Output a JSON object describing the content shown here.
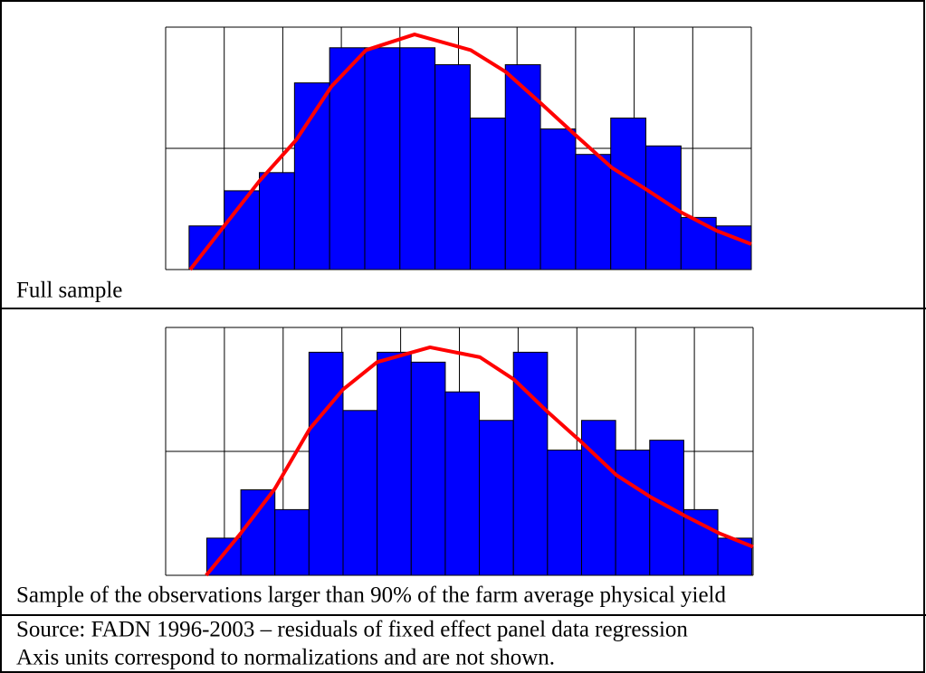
{
  "chart_data": [
    {
      "type": "histogram",
      "bins": [
        0.4,
        1.0,
        1.6,
        2.2,
        2.8,
        3.4,
        4.0,
        4.6,
        5.2,
        5.8,
        6.4,
        7.0,
        7.6,
        8.2,
        8.8,
        9.4,
        10.0
      ],
      "values": [
        0.36,
        0.65,
        0.8,
        1.54,
        1.83,
        1.83,
        1.83,
        1.69,
        1.25,
        1.69,
        1.16,
        0.95,
        1.25,
        1.02,
        0.43,
        0.36
      ],
      "color": "#0000ff",
      "fit": {
        "x": [
          0.42,
          1.0,
          1.6,
          2.23,
          2.83,
          3.42,
          4.25,
          5.21,
          5.81,
          6.41,
          7.02,
          7.62,
          8.21,
          8.81,
          9.41,
          10.0
        ],
        "y": [
          0,
          0.36,
          0.73,
          1.07,
          1.51,
          1.81,
          1.94,
          1.81,
          1.63,
          1.37,
          1.1,
          0.84,
          0.66,
          0.47,
          0.32,
          0.21
        ],
        "color": "#ff0000"
      },
      "xlim": [
        0,
        10
      ],
      "ylim": [
        0,
        2
      ],
      "xticks": [
        0,
        1,
        2,
        3,
        4,
        5,
        6,
        7,
        8,
        9,
        10
      ],
      "yticks": [
        0,
        1,
        2
      ],
      "grid": true
    },
    {
      "type": "histogram",
      "bins": [
        0.7,
        1.28,
        1.86,
        2.44,
        3.02,
        3.6,
        4.18,
        4.76,
        5.34,
        5.92,
        6.5,
        7.08,
        7.66,
        8.24,
        8.82,
        9.4,
        9.98
      ],
      "values": [
        0.3,
        0.69,
        0.53,
        1.8,
        1.33,
        1.8,
        1.72,
        1.48,
        1.25,
        1.8,
        1.01,
        1.25,
        1.01,
        1.09,
        0.53,
        0.3
      ],
      "color": "#0000ff",
      "fit": {
        "x": [
          0.69,
          1.28,
          1.86,
          2.45,
          3.02,
          3.6,
          4.5,
          5.35,
          5.93,
          6.5,
          7.09,
          7.67,
          8.26,
          8.84,
          9.42,
          10.0
        ],
        "y": [
          0,
          0.34,
          0.7,
          1.18,
          1.5,
          1.72,
          1.84,
          1.76,
          1.58,
          1.32,
          1.07,
          0.81,
          0.63,
          0.48,
          0.34,
          0.23
        ],
        "color": "#ff0000"
      },
      "xlim": [
        0,
        10
      ],
      "ylim": [
        0,
        2
      ],
      "xticks": [
        0,
        1,
        2,
        3,
        4,
        5,
        6,
        7,
        8,
        9,
        10
      ],
      "yticks": [
        0,
        1,
        2
      ],
      "grid": true
    }
  ],
  "captions": [
    "Full sample",
    "Sample of the observations larger than 90% of the farm average physical yield"
  ],
  "source": "Source: FADN 1996-2003 – residuals of fixed effect panel data regression",
  "note": "Axis units correspond to normalizations and are not shown."
}
